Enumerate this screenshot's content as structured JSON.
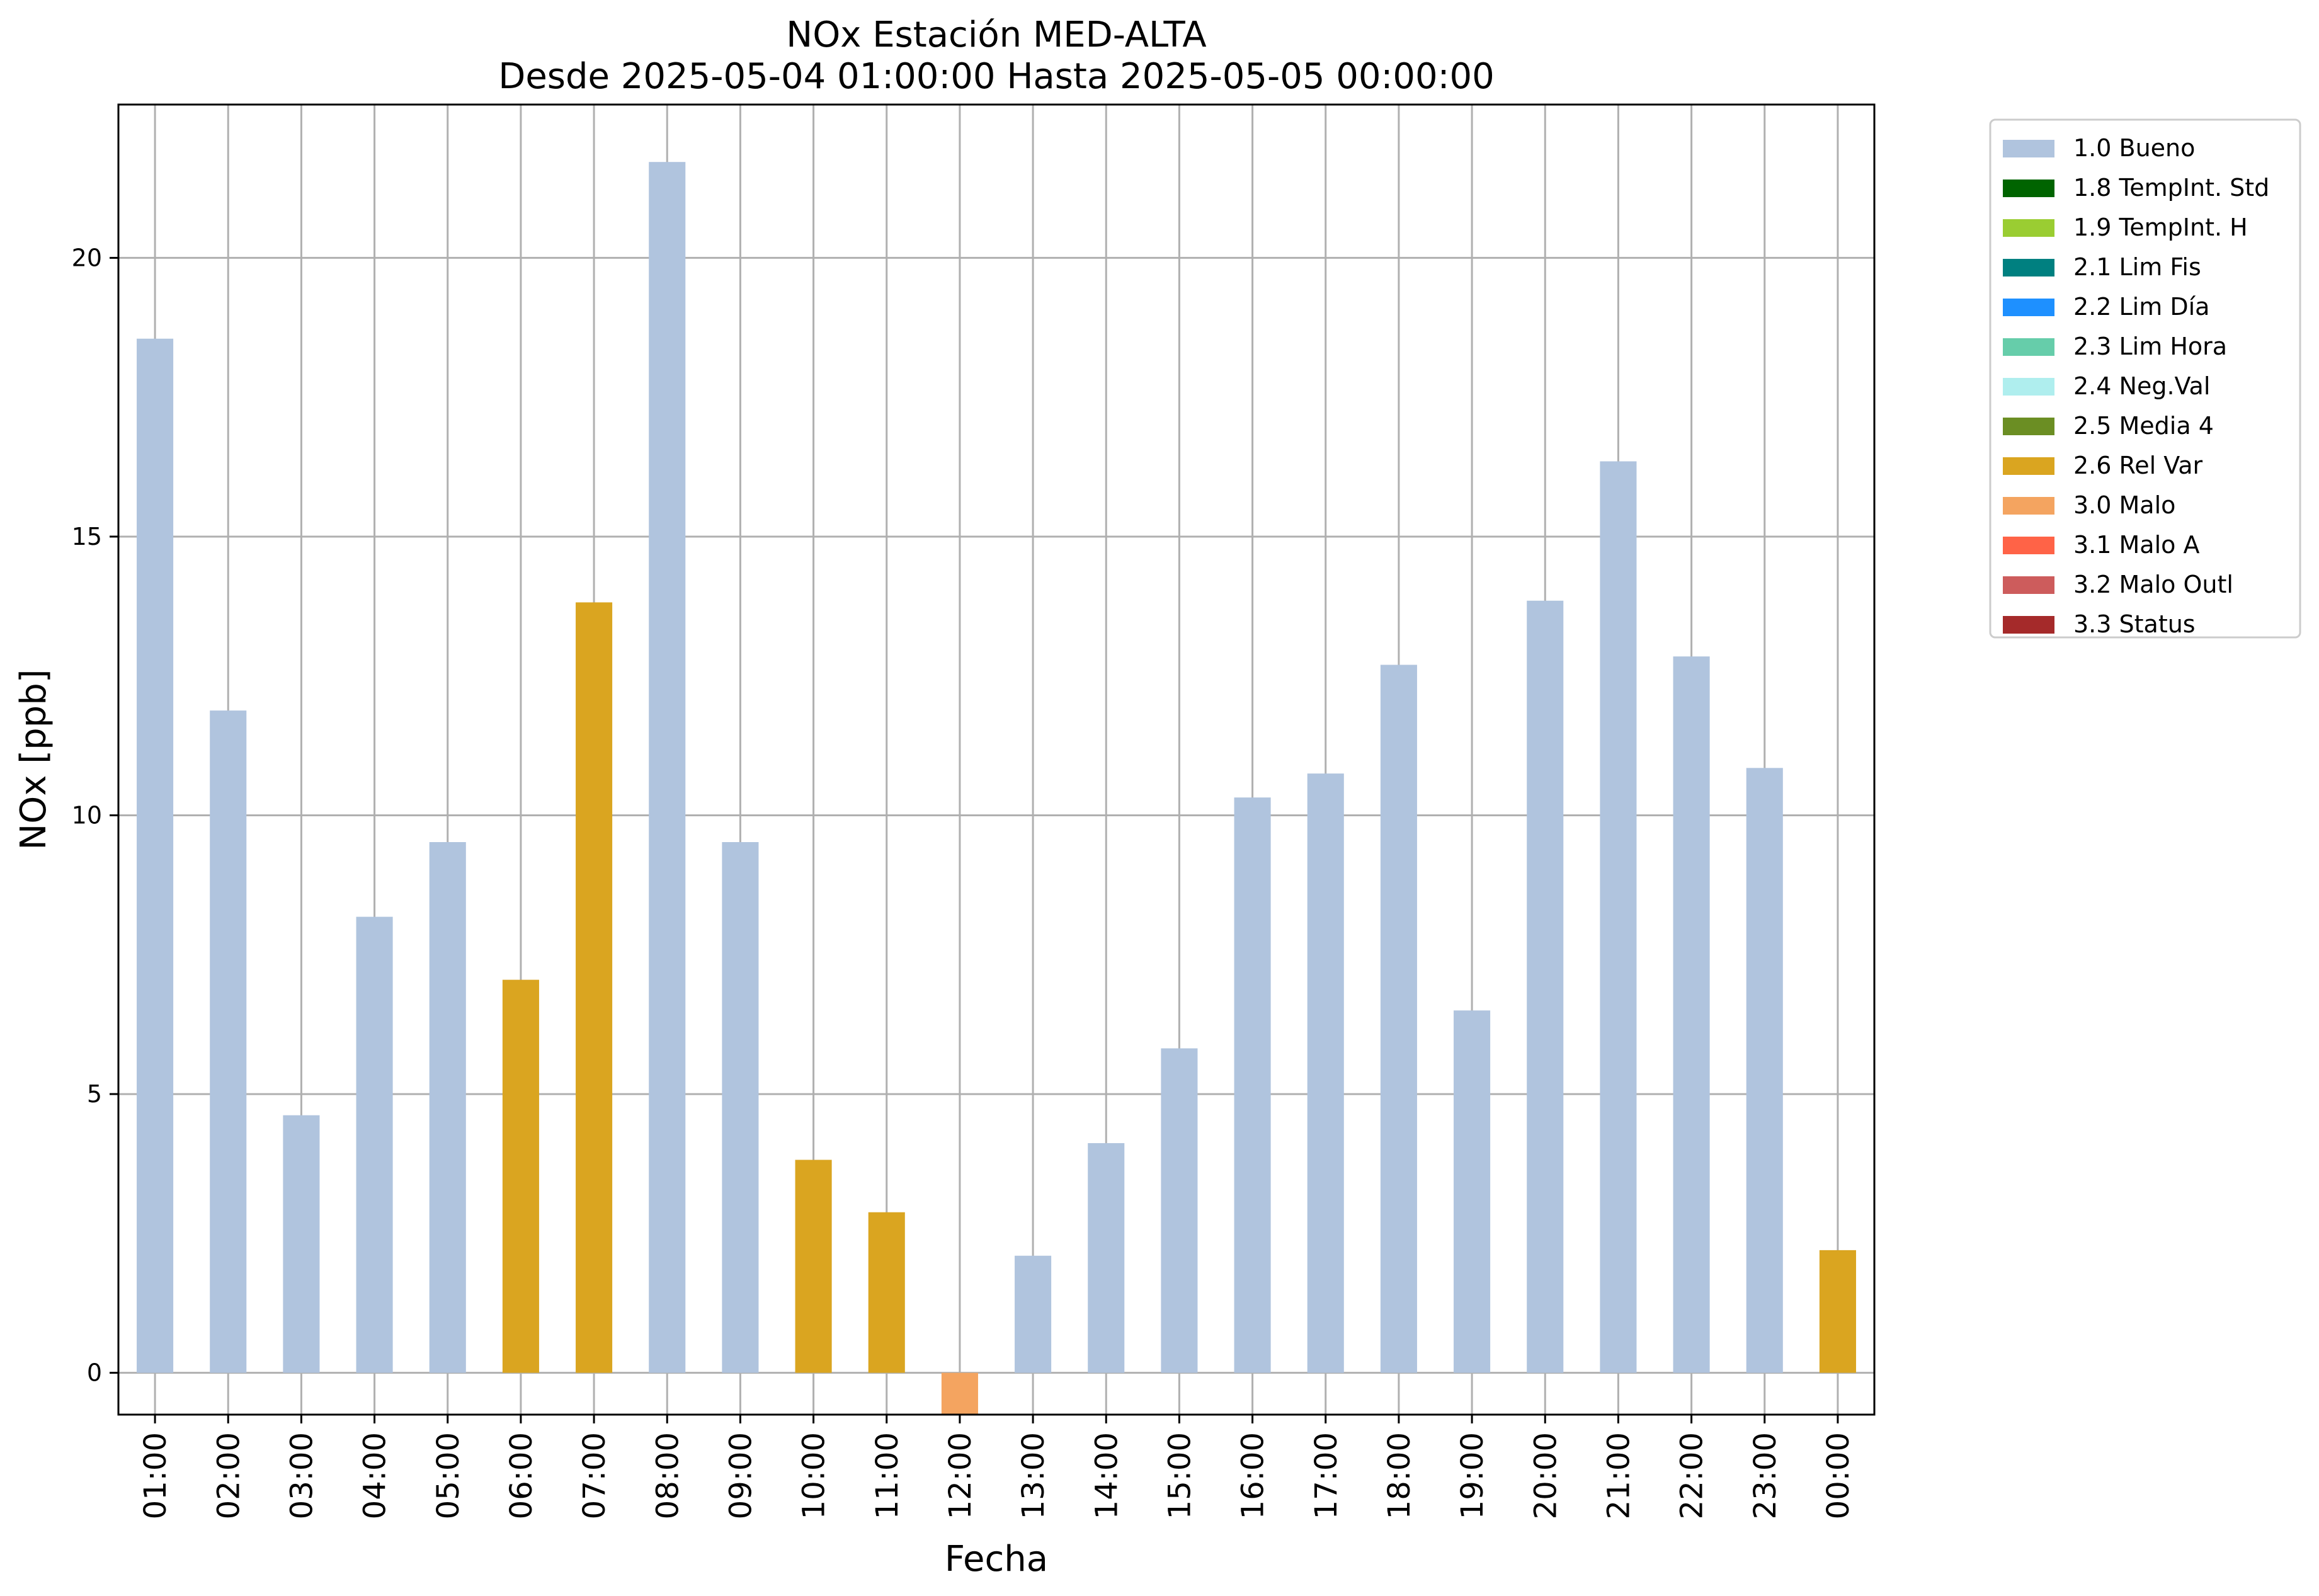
{
  "chart_data": {
    "type": "bar",
    "title": "NOx Estación MED-ALTA",
    "subtitle": "Desde 2025-05-04 01:00:00 Hasta 2025-05-05 00:00:00",
    "xlabel": "Fecha",
    "ylabel": "NOx [ppb]",
    "ylim": [
      -0.75,
      22.75
    ],
    "yticks": [
      0,
      5,
      10,
      15,
      20
    ],
    "grid": true,
    "legend_position": "outside-top-right",
    "categories": [
      "01:00",
      "02:00",
      "03:00",
      "04:00",
      "05:00",
      "06:00",
      "07:00",
      "08:00",
      "09:00",
      "10:00",
      "11:00",
      "12:00",
      "13:00",
      "14:00",
      "15:00",
      "16:00",
      "17:00",
      "18:00",
      "19:00",
      "20:00",
      "21:00",
      "22:00",
      "23:00",
      "00:00"
    ],
    "values": [
      18.55,
      11.88,
      4.62,
      8.18,
      9.52,
      7.05,
      13.82,
      21.72,
      9.52,
      3.82,
      2.88,
      -0.75,
      2.1,
      4.12,
      5.82,
      10.32,
      10.75,
      12.7,
      6.5,
      13.85,
      16.35,
      12.85,
      10.85,
      2.2
    ],
    "flags": [
      "1.0 Bueno",
      "1.0 Bueno",
      "1.0 Bueno",
      "1.0 Bueno",
      "1.0 Bueno",
      "2.6 Rel Var",
      "2.6 Rel Var",
      "1.0 Bueno",
      "1.0 Bueno",
      "2.6 Rel Var",
      "2.6 Rel Var",
      "3.0 Malo",
      "1.0 Bueno",
      "1.0 Bueno",
      "1.0 Bueno",
      "1.0 Bueno",
      "1.0 Bueno",
      "1.0 Bueno",
      "1.0 Bueno",
      "1.0 Bueno",
      "1.0 Bueno",
      "1.0 Bueno",
      "1.0 Bueno",
      "2.6 Rel Var"
    ],
    "legend": [
      {
        "label": "1.0 Bueno",
        "color": "#b0c4de"
      },
      {
        "label": "1.8 TempInt. Std",
        "color": "#006400"
      },
      {
        "label": "1.9 TempInt. H",
        "color": "#9acd32"
      },
      {
        "label": "2.1 Lim Fis",
        "color": "#008080"
      },
      {
        "label": "2.2 Lim Día",
        "color": "#1e90ff"
      },
      {
        "label": "2.3 Lim Hora",
        "color": "#66cdaa"
      },
      {
        "label": "2.4 Neg.Val",
        "color": "#afeeee"
      },
      {
        "label": "2.5 Media 4",
        "color": "#6b8e23"
      },
      {
        "label": "2.6 Rel Var",
        "color": "#daa520"
      },
      {
        "label": "3.0 Malo",
        "color": "#f4a460"
      },
      {
        "label": "3.1 Malo A",
        "color": "#ff6347"
      },
      {
        "label": "3.2 Malo Outl",
        "color": "#cd5c5c"
      },
      {
        "label": "3.3 Status",
        "color": "#a52a2a"
      }
    ]
  }
}
